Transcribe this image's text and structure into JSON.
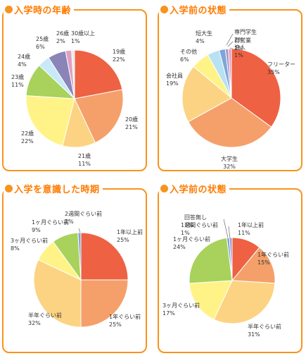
{
  "colors": {
    "frame": "#f7941d",
    "title": "#ff7b00"
  },
  "chart_data": [
    {
      "type": "pie",
      "title": "入学時の年齢",
      "categories": [
        "19歳",
        "20歳",
        "21歳",
        "22歳",
        "23歳",
        "24歳",
        "25歳",
        "26歳",
        "30歳以上"
      ],
      "values": [
        22,
        21,
        11,
        22,
        11,
        4,
        6,
        2,
        1
      ],
      "value_labels": [
        "22%",
        "21%",
        "11%",
        "22%",
        "11%",
        "4%",
        "6%",
        "2%",
        "1%"
      ],
      "colors": [
        "#ee6143",
        "#f5a06a",
        "#fcd382",
        "#fff387",
        "#a8d25b",
        "#c8e9f7",
        "#8a84b8",
        "#dfa1c1",
        "#e8e8e8"
      ]
    },
    {
      "type": "pie",
      "title": "入学前の状態",
      "categories": [
        "フリーター",
        "大学生",
        "会社員",
        "その他",
        "短大生",
        "専門学生",
        "自営業",
        "浪人"
      ],
      "values": [
        35,
        32,
        19,
        6,
        4,
        2,
        1,
        1
      ],
      "value_labels": [
        "35%",
        "32%",
        "19%",
        "6%",
        "4%",
        "2%",
        "1%",
        "1%"
      ],
      "colors": [
        "#ee6143",
        "#f5a06a",
        "#fcd382",
        "#fff387",
        "#b8e1f4",
        "#7da5d8",
        "#a895c9",
        "#e89db8"
      ]
    },
    {
      "type": "pie",
      "title": "入学を意識した時期",
      "categories": [
        "1年以上前",
        "1年ぐらい前",
        "半年ぐらい前",
        "3ヶ月ぐらい前",
        "1ヶ月ぐらい前",
        "2週間ぐらい前"
      ],
      "values": [
        25,
        25,
        32,
        8,
        9,
        1
      ],
      "value_labels": [
        "25%",
        "25%",
        "32%",
        "8%",
        "9%",
        "1%"
      ],
      "colors": [
        "#ee6143",
        "#f5a06a",
        "#fcd382",
        "#fff387",
        "#a8d25b",
        "#7da5d8"
      ]
    },
    {
      "type": "pie",
      "title": "入学前の状態",
      "categories": [
        "1年以上前",
        "1年ぐらい前",
        "半年ぐらい前",
        "3ヶ月ぐらい前",
        "1ヶ月ぐらい前",
        "1週間ぐらい前",
        "回答無し"
      ],
      "values": [
        11,
        15,
        31,
        17,
        24,
        1,
        1
      ],
      "value_labels": [
        "11%",
        "15%",
        "31%",
        "17%",
        "24%",
        "1%",
        "1%"
      ],
      "colors": [
        "#ee6143",
        "#f5a06a",
        "#fcd382",
        "#fff387",
        "#a8d25b",
        "#7da5d8",
        "#a895c9"
      ]
    }
  ]
}
